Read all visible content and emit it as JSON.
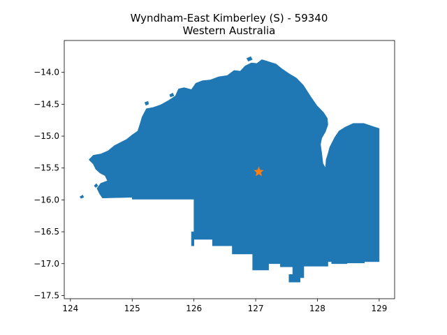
{
  "chart_data": {
    "type": "map",
    "title": "Wyndham-East Kimberley (S) - 59340",
    "subtitle": "Western Australia",
    "xlim": [
      123.9,
      129.25
    ],
    "ylim": [
      -17.55,
      -13.5
    ],
    "x_ticks": [
      124,
      125,
      126,
      127,
      128,
      129
    ],
    "y_ticks": [
      -14.0,
      -14.5,
      -15.0,
      -15.5,
      -16.0,
      -16.5,
      -17.0,
      -17.5
    ],
    "x_tick_labels": [
      "124",
      "125",
      "126",
      "127",
      "128",
      "129"
    ],
    "y_tick_labels": [
      "−14.0",
      "−14.5",
      "−15.0",
      "−15.5",
      "−16.0",
      "−16.5",
      "−17.0",
      "−17.5"
    ],
    "region": {
      "name": "Wyndham-East Kimberley (S)",
      "color": "#1f77b4",
      "outline": [
        [
          124.52,
          -15.97
        ],
        [
          124.47,
          -15.9
        ],
        [
          124.43,
          -15.82
        ],
        [
          124.49,
          -15.74
        ],
        [
          124.6,
          -15.7
        ],
        [
          124.56,
          -15.62
        ],
        [
          124.48,
          -15.58
        ],
        [
          124.41,
          -15.52
        ],
        [
          124.37,
          -15.44
        ],
        [
          124.3,
          -15.37
        ],
        [
          124.37,
          -15.3
        ],
        [
          124.49,
          -15.28
        ],
        [
          124.61,
          -15.23
        ],
        [
          124.71,
          -15.15
        ],
        [
          124.81,
          -15.1
        ],
        [
          124.91,
          -15.05
        ],
        [
          125.0,
          -14.98
        ],
        [
          125.09,
          -14.92
        ],
        [
          125.13,
          -14.8
        ],
        [
          125.16,
          -14.7
        ],
        [
          125.23,
          -14.57
        ],
        [
          125.34,
          -14.55
        ],
        [
          125.46,
          -14.51
        ],
        [
          125.59,
          -14.44
        ],
        [
          125.7,
          -14.37
        ],
        [
          125.75,
          -14.26
        ],
        [
          125.84,
          -14.24
        ],
        [
          125.96,
          -14.27
        ],
        [
          126.03,
          -14.17
        ],
        [
          126.14,
          -14.13
        ],
        [
          126.26,
          -14.12
        ],
        [
          126.4,
          -14.07
        ],
        [
          126.54,
          -14.05
        ],
        [
          126.65,
          -13.97
        ],
        [
          126.75,
          -13.98
        ],
        [
          126.83,
          -13.9
        ],
        [
          126.93,
          -13.85
        ],
        [
          127.02,
          -13.86
        ],
        [
          127.1,
          -13.8
        ],
        [
          127.2,
          -13.83
        ],
        [
          127.33,
          -13.87
        ],
        [
          127.42,
          -13.94
        ],
        [
          127.54,
          -14.02
        ],
        [
          127.66,
          -14.09
        ],
        [
          127.77,
          -14.2
        ],
        [
          127.89,
          -14.38
        ],
        [
          127.99,
          -14.52
        ],
        [
          128.1,
          -14.63
        ],
        [
          128.16,
          -14.72
        ],
        [
          128.17,
          -14.82
        ],
        [
          128.13,
          -14.93
        ],
        [
          128.07,
          -15.03
        ],
        [
          128.05,
          -15.13
        ],
        [
          128.07,
          -15.27
        ],
        [
          128.09,
          -15.43
        ],
        [
          128.13,
          -15.5
        ],
        [
          128.14,
          -15.37
        ],
        [
          128.17,
          -15.28
        ],
        [
          128.2,
          -15.17
        ],
        [
          128.28,
          -15.02
        ],
        [
          128.35,
          -14.92
        ],
        [
          128.45,
          -14.86
        ],
        [
          128.58,
          -14.8
        ],
        [
          128.75,
          -14.8
        ],
        [
          128.9,
          -14.85
        ],
        [
          129.0,
          -14.88
        ],
        [
          129.0,
          -16.97
        ],
        [
          128.76,
          -16.97
        ],
        [
          128.76,
          -16.99
        ],
        [
          128.48,
          -16.99
        ],
        [
          128.48,
          -17.0
        ],
        [
          128.23,
          -17.0
        ],
        [
          128.23,
          -16.97
        ],
        [
          128.17,
          -16.97
        ],
        [
          128.17,
          -17.04
        ],
        [
          127.78,
          -17.04
        ],
        [
          127.78,
          -17.22
        ],
        [
          127.72,
          -17.22
        ],
        [
          127.72,
          -17.29
        ],
        [
          127.54,
          -17.29
        ],
        [
          127.54,
          -17.17
        ],
        [
          127.6,
          -17.17
        ],
        [
          127.6,
          -17.05
        ],
        [
          127.4,
          -17.05
        ],
        [
          127.4,
          -17.0
        ],
        [
          127.21,
          -17.0
        ],
        [
          127.21,
          -17.1
        ],
        [
          126.95,
          -17.1
        ],
        [
          126.95,
          -16.85
        ],
        [
          126.62,
          -16.85
        ],
        [
          126.62,
          -16.72
        ],
        [
          126.3,
          -16.72
        ],
        [
          126.3,
          -16.62
        ],
        [
          126.0,
          -16.62
        ],
        [
          126.0,
          -16.72
        ],
        [
          125.96,
          -16.72
        ],
        [
          125.96,
          -16.5
        ],
        [
          126.0,
          -16.5
        ],
        [
          126.0,
          -15.99
        ],
        [
          125.0,
          -15.99
        ],
        [
          125.0,
          -15.96
        ],
        [
          124.52,
          -15.97
        ]
      ],
      "islands": [
        [
          [
            124.15,
            -15.95
          ],
          [
            124.2,
            -15.92
          ],
          [
            124.22,
            -15.96
          ],
          [
            124.17,
            -15.98
          ]
        ],
        [
          [
            124.38,
            -15.78
          ],
          [
            124.42,
            -15.74
          ],
          [
            124.45,
            -15.78
          ],
          [
            124.41,
            -15.81
          ]
        ],
        [
          [
            125.2,
            -14.47
          ],
          [
            125.26,
            -14.45
          ],
          [
            125.27,
            -14.5
          ],
          [
            125.22,
            -14.52
          ]
        ],
        [
          [
            125.6,
            -14.35
          ],
          [
            125.66,
            -14.32
          ],
          [
            125.68,
            -14.37
          ],
          [
            125.62,
            -14.39
          ]
        ],
        [
          [
            126.85,
            -13.78
          ],
          [
            126.92,
            -13.75
          ],
          [
            126.95,
            -13.8
          ],
          [
            126.88,
            -13.83
          ]
        ]
      ]
    },
    "marker": {
      "type": "star",
      "x": 127.05,
      "y": -15.56,
      "color": "#ff7f0e"
    }
  }
}
